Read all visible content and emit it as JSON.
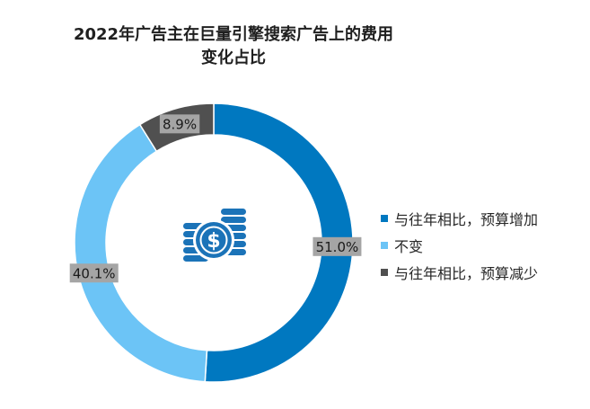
{
  "title_lines": [
    "2022年广告主在巨量引擎搜索广告上的费用",
    "变化占比"
  ],
  "colors": {
    "increase": "#0078c0",
    "same": "#6cc4f6",
    "decrease": "#505050",
    "icon": "#1b73b8",
    "label_bg": "#a5a5a5"
  },
  "icon": "money-coins-icon",
  "chart_data": {
    "type": "pie",
    "donut": true,
    "title": "2022年广告主在巨量引擎搜索广告上的费用变化占比",
    "legend_position": "right",
    "categories": [
      "与往年相比，预算增加",
      "不变",
      "与往年相比，预算减少"
    ],
    "values": [
      51.0,
      40.1,
      8.9
    ],
    "labels": [
      "51.0%",
      "40.1%",
      "8.9%"
    ]
  }
}
